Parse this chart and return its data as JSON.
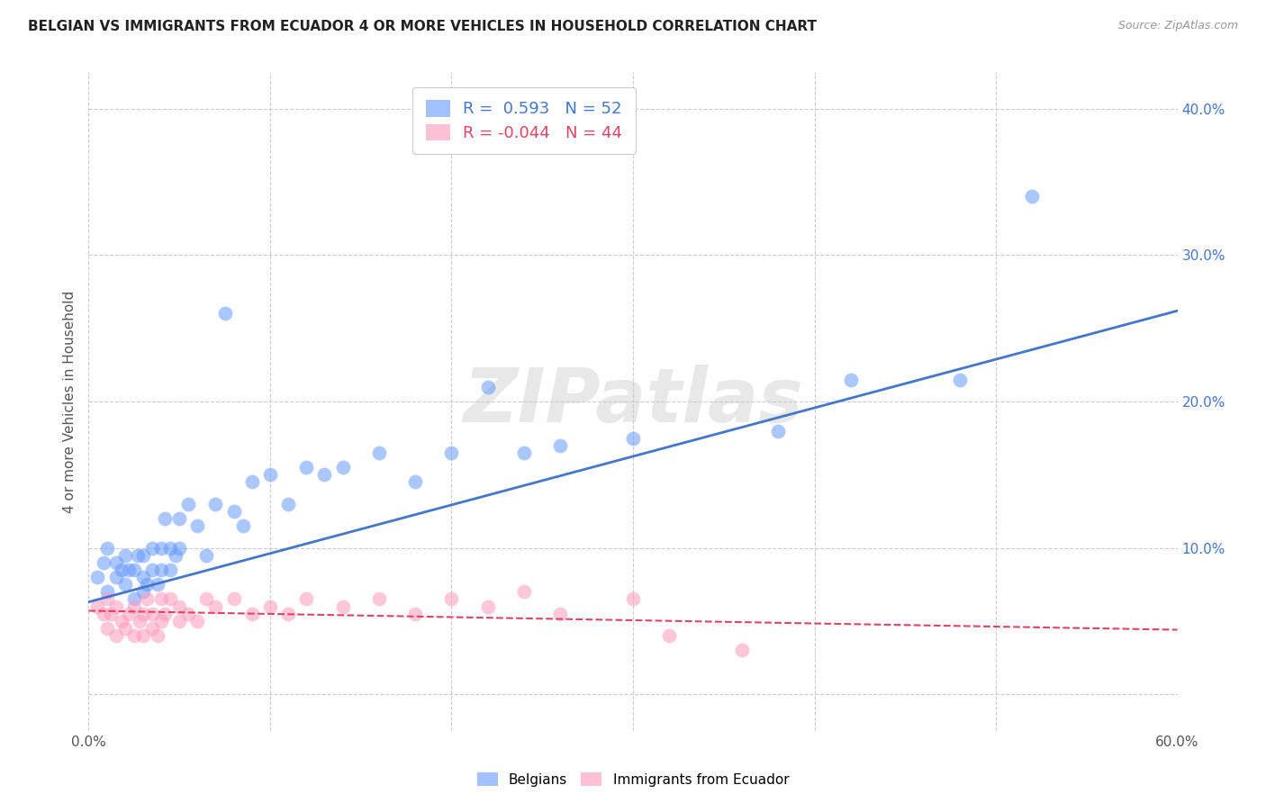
{
  "title": "BELGIAN VS IMMIGRANTS FROM ECUADOR 4 OR MORE VEHICLES IN HOUSEHOLD CORRELATION CHART",
  "source": "Source: ZipAtlas.com",
  "ylabel": "4 or more Vehicles in Household",
  "xlabel": "",
  "xlim": [
    0.0,
    0.6
  ],
  "ylim": [
    -0.025,
    0.425
  ],
  "yticks": [
    0.0,
    0.1,
    0.2,
    0.3,
    0.4
  ],
  "xticks": [
    0.0,
    0.1,
    0.2,
    0.3,
    0.4,
    0.5,
    0.6
  ],
  "belgian_R": 0.593,
  "belgian_N": 52,
  "ecuador_R": -0.044,
  "ecuador_N": 44,
  "belgian_color": "#6699ff",
  "ecuador_color": "#ff99bb",
  "line_belgian_color": "#4477cc",
  "line_ecuador_color": "#dd4466",
  "tick_color_y": "#4477cc",
  "watermark": "ZIPatlas",
  "background_color": "#ffffff",
  "grid_color": "#cccccc",
  "belgian_points_x": [
    0.005,
    0.008,
    0.01,
    0.01,
    0.015,
    0.015,
    0.018,
    0.02,
    0.02,
    0.022,
    0.025,
    0.025,
    0.027,
    0.03,
    0.03,
    0.03,
    0.032,
    0.035,
    0.035,
    0.038,
    0.04,
    0.04,
    0.042,
    0.045,
    0.045,
    0.048,
    0.05,
    0.05,
    0.055,
    0.06,
    0.065,
    0.07,
    0.075,
    0.08,
    0.085,
    0.09,
    0.1,
    0.11,
    0.12,
    0.13,
    0.14,
    0.16,
    0.18,
    0.2,
    0.22,
    0.24,
    0.26,
    0.3,
    0.38,
    0.42,
    0.48,
    0.52
  ],
  "belgian_points_y": [
    0.08,
    0.09,
    0.07,
    0.1,
    0.08,
    0.09,
    0.085,
    0.075,
    0.095,
    0.085,
    0.065,
    0.085,
    0.095,
    0.07,
    0.08,
    0.095,
    0.075,
    0.085,
    0.1,
    0.075,
    0.085,
    0.1,
    0.12,
    0.085,
    0.1,
    0.095,
    0.1,
    0.12,
    0.13,
    0.115,
    0.095,
    0.13,
    0.26,
    0.125,
    0.115,
    0.145,
    0.15,
    0.13,
    0.155,
    0.15,
    0.155,
    0.165,
    0.145,
    0.165,
    0.21,
    0.165,
    0.17,
    0.175,
    0.18,
    0.215,
    0.215,
    0.34
  ],
  "ecuador_points_x": [
    0.005,
    0.008,
    0.01,
    0.01,
    0.012,
    0.015,
    0.015,
    0.018,
    0.02,
    0.022,
    0.025,
    0.025,
    0.028,
    0.03,
    0.03,
    0.032,
    0.035,
    0.035,
    0.038,
    0.04,
    0.04,
    0.042,
    0.045,
    0.05,
    0.05,
    0.055,
    0.06,
    0.065,
    0.07,
    0.08,
    0.09,
    0.1,
    0.11,
    0.12,
    0.14,
    0.16,
    0.18,
    0.2,
    0.22,
    0.24,
    0.26,
    0.3,
    0.32,
    0.36
  ],
  "ecuador_points_y": [
    0.06,
    0.055,
    0.045,
    0.065,
    0.055,
    0.04,
    0.06,
    0.05,
    0.045,
    0.055,
    0.04,
    0.06,
    0.05,
    0.04,
    0.055,
    0.065,
    0.045,
    0.055,
    0.04,
    0.05,
    0.065,
    0.055,
    0.065,
    0.05,
    0.06,
    0.055,
    0.05,
    0.065,
    0.06,
    0.065,
    0.055,
    0.06,
    0.055,
    0.065,
    0.06,
    0.065,
    0.055,
    0.065,
    0.06,
    0.07,
    0.055,
    0.065,
    0.04,
    0.03
  ],
  "belgian_line_x": [
    0.0,
    0.6
  ],
  "belgian_line_y": [
    0.063,
    0.262
  ],
  "ecuador_line_x": [
    0.0,
    0.6
  ],
  "ecuador_line_y": [
    0.057,
    0.044
  ]
}
